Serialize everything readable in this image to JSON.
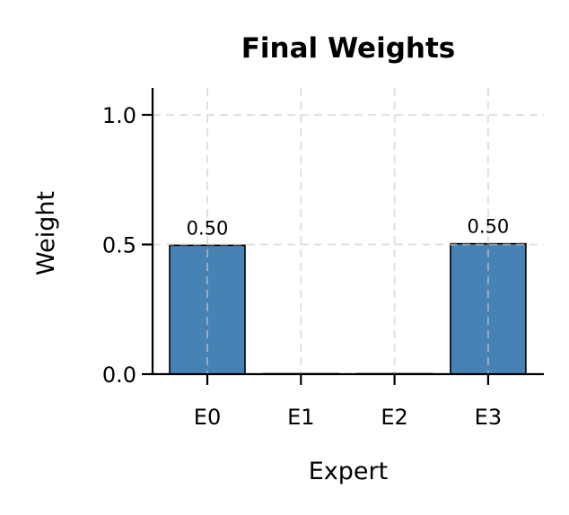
{
  "chart_data": {
    "type": "bar",
    "title": "Final Weights",
    "xlabel": "Expert",
    "ylabel": "Weight",
    "categories": [
      "E0",
      "E1",
      "E2",
      "E3"
    ],
    "values": [
      0.497,
      0.0,
      0.0,
      0.503
    ],
    "value_labels": [
      "0.50",
      "",
      "",
      "0.50"
    ],
    "ylim": [
      0,
      1.1
    ],
    "yticks": [
      0.0,
      0.5,
      1.0
    ],
    "ytick_labels": [
      "0.0",
      "0.5",
      "1.0"
    ],
    "grid": true,
    "grid_style": "dashed",
    "legend": null,
    "bar_color": "#4682B4",
    "edge_color": "#000000"
  }
}
